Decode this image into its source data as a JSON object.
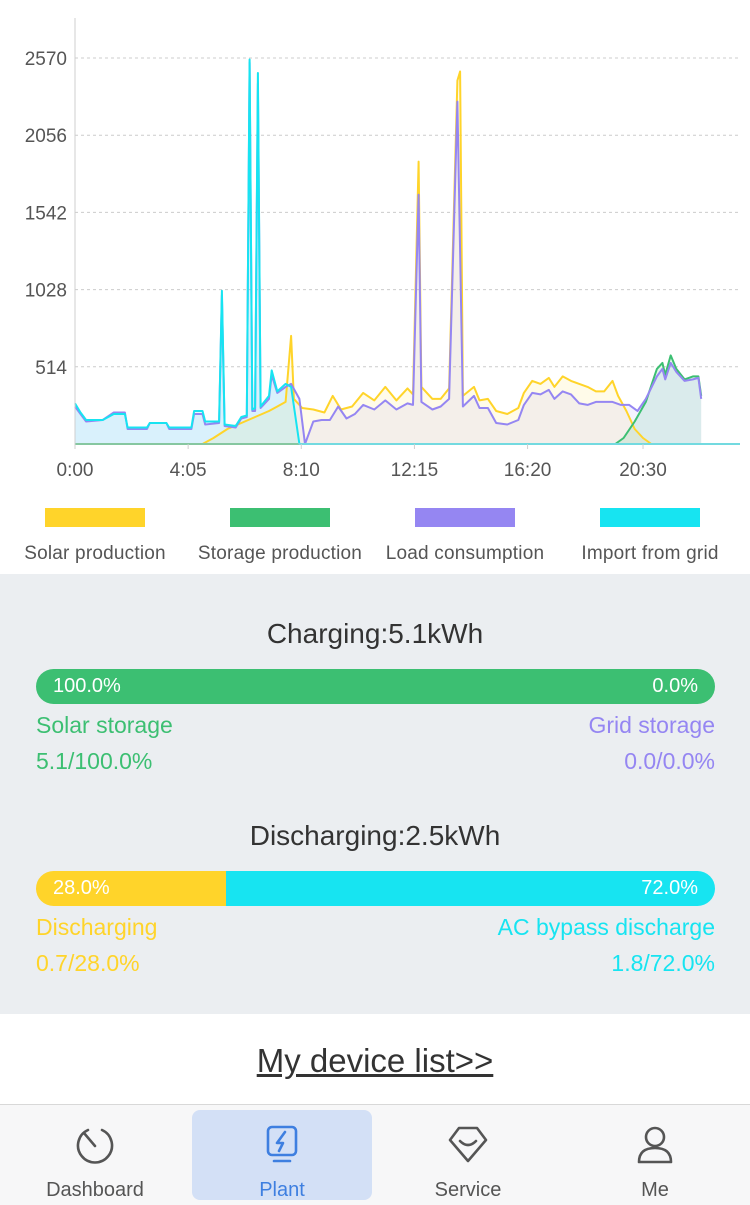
{
  "chart_data": {
    "type": "area",
    "x_ticks": [
      "0:00",
      "4:05",
      "8:10",
      "12:15",
      "16:20",
      "20:30"
    ],
    "y_ticks": [
      514,
      1028,
      1542,
      2056,
      2570
    ],
    "ylim": [
      0,
      2570
    ],
    "xlim_hours": [
      0,
      24
    ],
    "grid": "horizontal dashed",
    "legend_position": "bottom",
    "series": [
      {
        "name": "Solar production",
        "color": "#ffd42a",
        "points": [
          [
            0,
            0
          ],
          [
            4.6,
            0
          ],
          [
            5.0,
            40
          ],
          [
            5.5,
            100
          ],
          [
            6.0,
            140
          ],
          [
            6.5,
            180
          ],
          [
            7.0,
            220
          ],
          [
            7.3,
            250
          ],
          [
            7.6,
            280
          ],
          [
            7.8,
            720
          ],
          [
            7.9,
            300
          ],
          [
            8.2,
            240
          ],
          [
            8.6,
            230
          ],
          [
            9.0,
            210
          ],
          [
            9.3,
            320
          ],
          [
            9.6,
            230
          ],
          [
            10.0,
            250
          ],
          [
            10.4,
            340
          ],
          [
            10.8,
            290
          ],
          [
            11.2,
            380
          ],
          [
            11.6,
            290
          ],
          [
            12.0,
            370
          ],
          [
            12.2,
            330
          ],
          [
            12.4,
            1880
          ],
          [
            12.5,
            380
          ],
          [
            12.9,
            300
          ],
          [
            13.2,
            300
          ],
          [
            13.5,
            370
          ],
          [
            13.8,
            2420
          ],
          [
            13.9,
            2480
          ],
          [
            14.0,
            320
          ],
          [
            14.4,
            380
          ],
          [
            14.6,
            290
          ],
          [
            14.9,
            300
          ],
          [
            15.2,
            220
          ],
          [
            15.6,
            200
          ],
          [
            16.0,
            240
          ],
          [
            16.2,
            340
          ],
          [
            16.5,
            420
          ],
          [
            16.8,
            400
          ],
          [
            17.1,
            440
          ],
          [
            17.3,
            380
          ],
          [
            17.6,
            450
          ],
          [
            17.9,
            420
          ],
          [
            18.2,
            400
          ],
          [
            18.5,
            380
          ],
          [
            18.8,
            350
          ],
          [
            19.1,
            350
          ],
          [
            19.4,
            420
          ],
          [
            19.6,
            320
          ],
          [
            19.9,
            220
          ],
          [
            20.2,
            100
          ],
          [
            20.5,
            40
          ],
          [
            20.8,
            0
          ],
          [
            24,
            0
          ]
        ]
      },
      {
        "name": "Storage production",
        "color": "#3cbf72",
        "points": [
          [
            0,
            0
          ],
          [
            19.5,
            0
          ],
          [
            19.8,
            40
          ],
          [
            20.2,
            150
          ],
          [
            20.6,
            280
          ],
          [
            21.0,
            500
          ],
          [
            21.2,
            540
          ],
          [
            21.3,
            460
          ],
          [
            21.5,
            590
          ],
          [
            21.7,
            500
          ],
          [
            22.0,
            430
          ],
          [
            22.3,
            450
          ],
          [
            22.5,
            450
          ],
          [
            22.6,
            320
          ]
        ]
      },
      {
        "name": "Load consumption",
        "color": "#9586f2",
        "points": [
          [
            0,
            250
          ],
          [
            0.2,
            200
          ],
          [
            0.4,
            150
          ],
          [
            1.0,
            160
          ],
          [
            1.4,
            210
          ],
          [
            1.8,
            210
          ],
          [
            1.9,
            100
          ],
          [
            2.6,
            100
          ],
          [
            2.7,
            140
          ],
          [
            3.3,
            140
          ],
          [
            3.4,
            100
          ],
          [
            4.2,
            100
          ],
          [
            4.3,
            200
          ],
          [
            4.6,
            200
          ],
          [
            4.7,
            130
          ],
          [
            5.2,
            140
          ],
          [
            5.3,
            990
          ],
          [
            5.4,
            120
          ],
          [
            5.8,
            110
          ],
          [
            6.0,
            170
          ],
          [
            6.2,
            180
          ],
          [
            6.3,
            2540
          ],
          [
            6.4,
            220
          ],
          [
            6.5,
            220
          ],
          [
            6.6,
            2400
          ],
          [
            6.7,
            240
          ],
          [
            7.0,
            300
          ],
          [
            7.1,
            460
          ],
          [
            7.3,
            340
          ],
          [
            7.6,
            380
          ],
          [
            7.8,
            400
          ],
          [
            8.1,
            300
          ],
          [
            8.3,
            0
          ],
          [
            8.6,
            150
          ],
          [
            8.9,
            160
          ],
          [
            9.2,
            160
          ],
          [
            9.5,
            250
          ],
          [
            9.8,
            170
          ],
          [
            10.1,
            200
          ],
          [
            10.4,
            260
          ],
          [
            10.8,
            230
          ],
          [
            11.2,
            290
          ],
          [
            11.6,
            230
          ],
          [
            12.0,
            270
          ],
          [
            12.2,
            260
          ],
          [
            12.4,
            1660
          ],
          [
            12.5,
            280
          ],
          [
            12.9,
            230
          ],
          [
            13.2,
            250
          ],
          [
            13.5,
            300
          ],
          [
            13.8,
            2280
          ],
          [
            14.0,
            250
          ],
          [
            14.4,
            320
          ],
          [
            14.6,
            240
          ],
          [
            14.9,
            240
          ],
          [
            15.2,
            140
          ],
          [
            15.6,
            130
          ],
          [
            16.0,
            160
          ],
          [
            16.2,
            260
          ],
          [
            16.5,
            340
          ],
          [
            16.8,
            330
          ],
          [
            17.1,
            360
          ],
          [
            17.3,
            300
          ],
          [
            17.6,
            350
          ],
          [
            17.9,
            330
          ],
          [
            18.2,
            270
          ],
          [
            18.5,
            260
          ],
          [
            18.8,
            280
          ],
          [
            19.1,
            280
          ],
          [
            19.4,
            280
          ],
          [
            19.7,
            260
          ],
          [
            20.0,
            260
          ],
          [
            20.3,
            220
          ],
          [
            20.6,
            300
          ],
          [
            21.0,
            450
          ],
          [
            21.2,
            500
          ],
          [
            21.3,
            430
          ],
          [
            21.5,
            540
          ],
          [
            21.7,
            480
          ],
          [
            22.0,
            420
          ],
          [
            22.3,
            430
          ],
          [
            22.5,
            440
          ],
          [
            22.6,
            300
          ]
        ]
      },
      {
        "name": "Import from grid",
        "color": "#17e4f1",
        "points": [
          [
            0,
            270
          ],
          [
            0.2,
            210
          ],
          [
            0.4,
            160
          ],
          [
            1.0,
            160
          ],
          [
            1.4,
            200
          ],
          [
            1.8,
            200
          ],
          [
            1.9,
            110
          ],
          [
            2.6,
            110
          ],
          [
            2.7,
            140
          ],
          [
            3.3,
            140
          ],
          [
            3.4,
            110
          ],
          [
            4.2,
            110
          ],
          [
            4.3,
            220
          ],
          [
            4.6,
            220
          ],
          [
            4.7,
            150
          ],
          [
            5.2,
            150
          ],
          [
            5.3,
            1020
          ],
          [
            5.4,
            130
          ],
          [
            5.8,
            120
          ],
          [
            6.0,
            180
          ],
          [
            6.2,
            190
          ],
          [
            6.3,
            2560
          ],
          [
            6.4,
            230
          ],
          [
            6.5,
            240
          ],
          [
            6.6,
            2470
          ],
          [
            6.7,
            250
          ],
          [
            7.0,
            320
          ],
          [
            7.1,
            490
          ],
          [
            7.3,
            350
          ],
          [
            7.6,
            400
          ],
          [
            7.8,
            380
          ],
          [
            8.1,
            0
          ],
          [
            24,
            0
          ]
        ]
      }
    ]
  },
  "legend": [
    {
      "label": "Solar production",
      "color": "#ffd42a"
    },
    {
      "label": "Storage production",
      "color": "#3cbf72"
    },
    {
      "label": "Load consumption",
      "color": "#9586f2"
    },
    {
      "label": "Import from grid",
      "color": "#17e4f1"
    }
  ],
  "charging": {
    "title": "Charging:5.1kWh",
    "bar_left_pct": "100.0%",
    "bar_right_pct": "0.0%",
    "left_fraction": 1.0,
    "left_color": "#3cbf72",
    "right_color": "#9586f2",
    "left_label": "Solar storage",
    "left_value": "5.1/100.0%",
    "right_label": "Grid storage",
    "right_value": "0.0/0.0%"
  },
  "discharging": {
    "title": "Discharging:2.5kWh",
    "bar_left_pct": "28.0%",
    "bar_right_pct": "72.0%",
    "left_fraction": 0.28,
    "left_color": "#ffd42a",
    "right_color": "#17e4f1",
    "left_label": "Discharging",
    "left_value": "0.7/28.0%",
    "right_label": "AC bypass discharge",
    "right_value": "1.8/72.0%"
  },
  "device_link": "My device list>>",
  "tabs": [
    {
      "label": "Dashboard",
      "icon": "dashboard-gauge-icon"
    },
    {
      "label": "Plant",
      "icon": "plant-lightning-icon",
      "active": true
    },
    {
      "label": "Service",
      "icon": "service-diamond-icon"
    },
    {
      "label": "Me",
      "icon": "person-icon"
    }
  ]
}
